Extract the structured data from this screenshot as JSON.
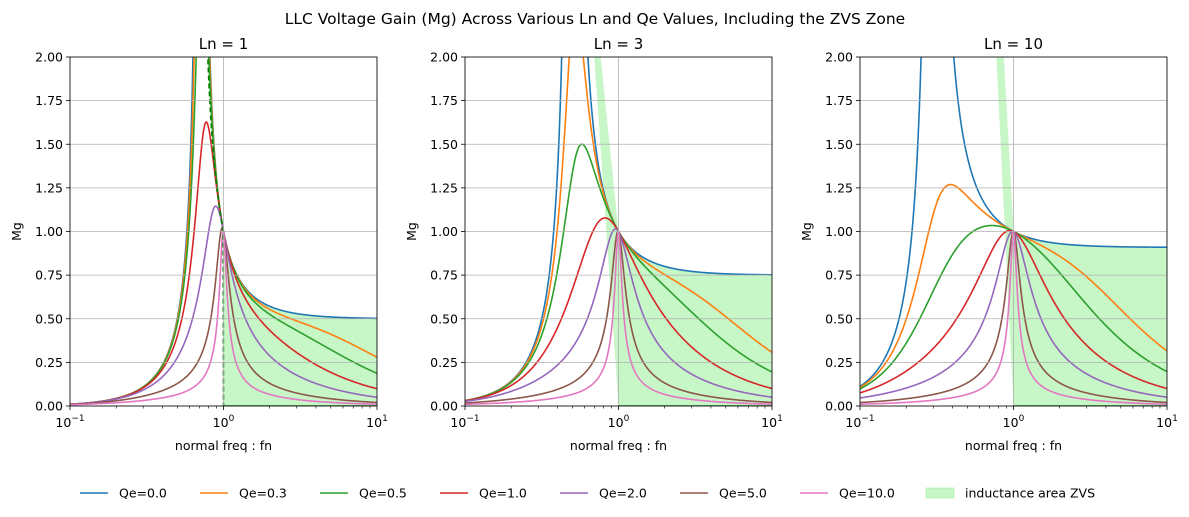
{
  "figure": {
    "suptitle": "LLC Voltage Gain (Mg) Across Various Ln and Qe Values, Including the ZVS Zone"
  },
  "chart_data": [
    {
      "type": "line",
      "title": "Ln = 1",
      "ln": 1,
      "xlabel": "normal freq : fn",
      "ylabel": "Mg",
      "xscale": "log",
      "xlim": [
        0.1,
        10
      ],
      "ylim": [
        0,
        2
      ],
      "x_ticks": [
        "10^-1",
        "10^0",
        "10^1"
      ],
      "y_ticks": [
        "0.00",
        "0.25",
        "0.50",
        "0.75",
        "1.00",
        "1.25",
        "1.50",
        "1.75",
        "2.00"
      ],
      "grid": true
    },
    {
      "type": "line",
      "title": "Ln = 3",
      "ln": 3,
      "xlabel": "normal freq : fn",
      "ylabel": "Mg",
      "xscale": "log",
      "xlim": [
        0.1,
        10
      ],
      "ylim": [
        0,
        2
      ],
      "x_ticks": [
        "10^-1",
        "10^0",
        "10^1"
      ],
      "y_ticks": [
        "0.00",
        "0.25",
        "0.50",
        "0.75",
        "1.00",
        "1.25",
        "1.50",
        "1.75",
        "2.00"
      ],
      "grid": true
    },
    {
      "type": "line",
      "title": "Ln = 10",
      "ln": 10,
      "xlabel": "normal freq : fn",
      "ylabel": "Mg",
      "xscale": "log",
      "xlim": [
        0.1,
        10
      ],
      "ylim": [
        0,
        2
      ],
      "x_ticks": [
        "10^-1",
        "10^0",
        "10^1"
      ],
      "y_ticks": [
        "0.00",
        "0.25",
        "0.50",
        "0.75",
        "1.00",
        "1.25",
        "1.50",
        "1.75",
        "2.00"
      ],
      "grid": true
    }
  ],
  "series": [
    {
      "name": "Qe=0.0",
      "qe": 0.0,
      "color": "#1f77b4"
    },
    {
      "name": "Qe=0.3",
      "qe": 0.3,
      "color": "#ff7f0e"
    },
    {
      "name": "Qe=0.5",
      "qe": 0.5,
      "color": "#2ca02c"
    },
    {
      "name": "Qe=1.0",
      "qe": 1.0,
      "color": "#d62728"
    },
    {
      "name": "Qe=2.0",
      "qe": 2.0,
      "color": "#9467bd"
    },
    {
      "name": "Qe=5.0",
      "qe": 5.0,
      "color": "#8c564b"
    },
    {
      "name": "Qe=10.0",
      "qe": 10.0,
      "color": "#e377c2"
    }
  ],
  "zvs": {
    "name": "inductance area ZVS",
    "fill_color": "#90ee90",
    "boundary_color": "#008000"
  },
  "legend": {
    "placement": "bottom-center",
    "columns": 8
  }
}
